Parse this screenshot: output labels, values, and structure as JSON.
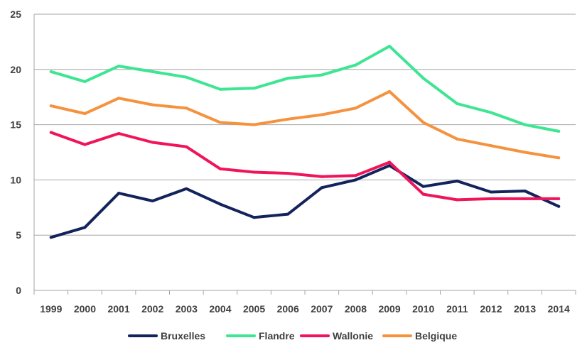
{
  "chart_data": {
    "type": "line",
    "title": "",
    "xlabel": "",
    "ylabel": "",
    "categories": [
      "1999",
      "2000",
      "2001",
      "2002",
      "2003",
      "2004",
      "2005",
      "2006",
      "2007",
      "2008",
      "2009",
      "2010",
      "2011",
      "2012",
      "2013",
      "2014"
    ],
    "ylim": [
      0,
      25
    ],
    "yticks": [
      0,
      5,
      10,
      15,
      20,
      25
    ],
    "grid": true,
    "legend_position": "bottom",
    "series": [
      {
        "name": "Bruxelles",
        "color": "#13235b",
        "values": [
          4.8,
          5.7,
          8.8,
          8.1,
          9.2,
          7.8,
          6.6,
          6.9,
          9.3,
          10.0,
          11.3,
          9.4,
          9.9,
          8.9,
          9.0,
          7.6
        ]
      },
      {
        "name": "Flandre",
        "color": "#3ee592",
        "values": [
          19.8,
          18.9,
          20.3,
          19.8,
          19.3,
          18.2,
          18.3,
          19.2,
          19.5,
          20.4,
          22.1,
          19.2,
          16.9,
          16.1,
          15.0,
          14.4
        ]
      },
      {
        "name": "Wallonie",
        "color": "#f0145a",
        "values": [
          14.3,
          13.2,
          14.2,
          13.4,
          13.0,
          11.0,
          10.7,
          10.6,
          10.3,
          10.4,
          11.6,
          8.7,
          8.2,
          8.3,
          8.3,
          8.3
        ]
      },
      {
        "name": "Belgique",
        "color": "#f5923e",
        "values": [
          16.7,
          16.0,
          17.4,
          16.8,
          16.5,
          15.2,
          15.0,
          15.5,
          15.9,
          16.5,
          18.0,
          15.2,
          13.7,
          13.1,
          12.5,
          12.0
        ]
      }
    ]
  }
}
